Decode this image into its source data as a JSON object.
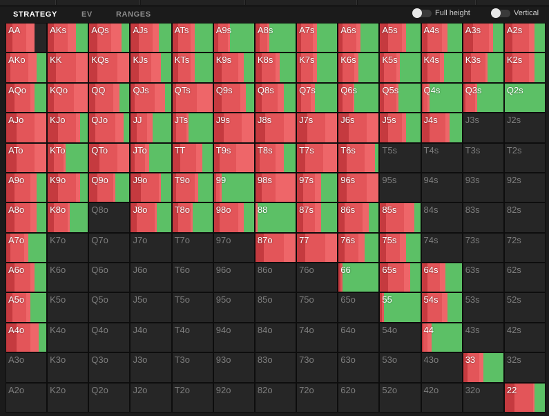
{
  "header": {
    "tabs": [
      {
        "label": "STRATEGY",
        "active": true
      },
      {
        "label": "EV",
        "active": false
      },
      {
        "label": "RANGES",
        "active": false
      }
    ],
    "toggles": [
      {
        "label": "Full height",
        "on": false
      },
      {
        "label": "Vertical",
        "on": false
      }
    ]
  },
  "colors": {
    "raise_dark": "#c53a3f",
    "raise": "#e35559",
    "raise_light": "#ee6669",
    "call": "#5cc066",
    "empty": "#262626",
    "inactive_text": "#7d7d7d"
  },
  "ranks": [
    "A",
    "K",
    "Q",
    "J",
    "T",
    "9",
    "8",
    "7",
    "6",
    "5",
    "4",
    "3",
    "2"
  ],
  "rows": [
    [
      "AA",
      "AKs",
      "AQs",
      "AJs",
      "ATs",
      "A9s",
      "A8s",
      "A7s",
      "A6s",
      "A5s",
      "A4s",
      "A3s",
      "A2s"
    ],
    [
      "AKo",
      "KK",
      "KQs",
      "KJs",
      "KTs",
      "K9s",
      "K8s",
      "K7s",
      "K6s",
      "K5s",
      "K4s",
      "K3s",
      "K2s"
    ],
    [
      "AQo",
      "KQo",
      "QQ",
      "QJs",
      "QTs",
      "Q9s",
      "Q8s",
      "Q7s",
      "Q6s",
      "Q5s",
      "Q4s",
      "Q3s",
      "Q2s"
    ],
    [
      "AJo",
      "KJo",
      "QJo",
      "JJ",
      "JTs",
      "J9s",
      "J8s",
      "J7s",
      "J6s",
      "J5s",
      "J4s",
      "J3s",
      "J2s"
    ],
    [
      "ATo",
      "KTo",
      "QTo",
      "JTo",
      "TT",
      "T9s",
      "T8s",
      "T7s",
      "T6s",
      "T5s",
      "T4s",
      "T3s",
      "T2s"
    ],
    [
      "A9o",
      "K9o",
      "Q9o",
      "J9o",
      "T9o",
      "99",
      "98s",
      "97s",
      "96s",
      "95s",
      "94s",
      "93s",
      "92s"
    ],
    [
      "A8o",
      "K8o",
      "Q8o",
      "J8o",
      "T8o",
      "98o",
      "88",
      "87s",
      "86s",
      "85s",
      "84s",
      "83s",
      "82s"
    ],
    [
      "A7o",
      "K7o",
      "Q7o",
      "J7o",
      "T7o",
      "97o",
      "87o",
      "77",
      "76s",
      "75s",
      "74s",
      "73s",
      "72s"
    ],
    [
      "A6o",
      "K6o",
      "Q6o",
      "J6o",
      "T6o",
      "96o",
      "86o",
      "76o",
      "66",
      "65s",
      "64s",
      "63s",
      "62s"
    ],
    [
      "A5o",
      "K5o",
      "Q5o",
      "J5o",
      "T5o",
      "95o",
      "85o",
      "75o",
      "65o",
      "55",
      "54s",
      "53s",
      "52s"
    ],
    [
      "A4o",
      "K4o",
      "Q4o",
      "J4o",
      "T4o",
      "94o",
      "84o",
      "74o",
      "64o",
      "54o",
      "44",
      "43s",
      "42s"
    ],
    [
      "A3o",
      "K3o",
      "Q3o",
      "J3o",
      "T3o",
      "93o",
      "83o",
      "73o",
      "63o",
      "53o",
      "43o",
      "33",
      "32s"
    ],
    [
      "A2o",
      "K2o",
      "Q2o",
      "J2o",
      "T2o",
      "92o",
      "82o",
      "72o",
      "62o",
      "52o",
      "42o",
      "32o",
      "22"
    ]
  ],
  "strategy": {
    "AA": [
      0.15,
      0.35,
      0.2,
      0.0
    ],
    "AKs": [
      0.15,
      0.35,
      0.2,
      0.3
    ],
    "AQs": [
      0.2,
      0.35,
      0.25,
      0.2
    ],
    "AJs": [
      0.2,
      0.35,
      0.15,
      0.3
    ],
    "ATs": [
      0.15,
      0.3,
      0.1,
      0.45
    ],
    "A9s": [
      0.1,
      0.25,
      0.05,
      0.6
    ],
    "A8s": [
      0.1,
      0.2,
      0.05,
      0.65
    ],
    "A7s": [
      0.1,
      0.3,
      0.1,
      0.5
    ],
    "A6s": [
      0.1,
      0.35,
      0.1,
      0.45
    ],
    "A5s": [
      0.2,
      0.35,
      0.1,
      0.35
    ],
    "A4s": [
      0.15,
      0.35,
      0.15,
      0.35
    ],
    "A3s": [
      0.25,
      0.4,
      0.1,
      0.25
    ],
    "A2s": [
      0.2,
      0.4,
      0.15,
      0.25
    ],
    "AKo": [
      0.1,
      0.45,
      0.2,
      0.25
    ],
    "KK": [
      0.2,
      0.5,
      0.3,
      0.0
    ],
    "KQs": [
      0.2,
      0.5,
      0.3,
      0.0
    ],
    "KJs": [
      0.2,
      0.3,
      0.25,
      0.25
    ],
    "KTs": [
      0.15,
      0.3,
      0.1,
      0.45
    ],
    "K9s": [
      0.2,
      0.4,
      0.15,
      0.25
    ],
    "K8s": [
      0.15,
      0.35,
      0.1,
      0.4
    ],
    "K7s": [
      0.1,
      0.3,
      0.1,
      0.5
    ],
    "K6s": [
      0.1,
      0.3,
      0.1,
      0.5
    ],
    "K5s": [
      0.1,
      0.3,
      0.1,
      0.5
    ],
    "K4s": [
      0.15,
      0.3,
      0.1,
      0.45
    ],
    "K3s": [
      0.2,
      0.35,
      0.05,
      0.4
    ],
    "K2s": [
      0.2,
      0.4,
      0.15,
      0.25
    ],
    "AQo": [
      0.2,
      0.4,
      0.1,
      0.3
    ],
    "KQo": [
      0.15,
      0.5,
      0.35,
      0.0
    ],
    "QQ": [
      0.15,
      0.45,
      0.15,
      0.25
    ],
    "QJs": [
      0.1,
      0.5,
      0.25,
      0.15
    ],
    "QTs": [
      0.1,
      0.5,
      0.4,
      0.0
    ],
    "Q9s": [
      0.2,
      0.45,
      0.15,
      0.2
    ],
    "Q8s": [
      0.15,
      0.4,
      0.15,
      0.3
    ],
    "Q7s": [
      0.1,
      0.25,
      0.1,
      0.55
    ],
    "Q6s": [
      0.1,
      0.25,
      0.05,
      0.6
    ],
    "Q5s": [
      0.1,
      0.3,
      0.05,
      0.55
    ],
    "Q4s": [
      0.05,
      0.1,
      0.05,
      0.8
    ],
    "Q3s": [
      0.05,
      0.25,
      0.05,
      0.65
    ],
    "Q2s": [
      0.0,
      0.0,
      0.0,
      1.0
    ],
    "AJo": [
      0.25,
      0.45,
      0.3,
      0.0
    ],
    "KJo": [
      0.25,
      0.45,
      0.1,
      0.2
    ],
    "QJo": [
      0.15,
      0.5,
      0.2,
      0.15
    ],
    "JJ": [
      0.15,
      0.25,
      0.15,
      0.45
    ],
    "JTs": [
      0.1,
      0.25,
      0.05,
      0.6
    ],
    "J9s": [
      0.25,
      0.45,
      0.3,
      0.0
    ],
    "J8s": [
      0.25,
      0.45,
      0.3,
      0.0
    ],
    "J7s": [
      0.25,
      0.45,
      0.3,
      0.0
    ],
    "J6s": [
      0.25,
      0.45,
      0.3,
      0.0
    ],
    "J5s": [
      0.2,
      0.35,
      0.1,
      0.35
    ],
    "J4s": [
      0.2,
      0.4,
      0.1,
      0.3
    ],
    "J3s": [
      0,
      0,
      0,
      0
    ],
    "J2s": [
      0,
      0,
      0,
      0
    ],
    "ATo": [
      0.25,
      0.45,
      0.3,
      0.0
    ],
    "KTo": [
      0.15,
      0.25,
      0.05,
      0.55
    ],
    "QTo": [
      0.25,
      0.45,
      0.3,
      0.0
    ],
    "JTo": [
      0.1,
      0.25,
      0.1,
      0.55
    ],
    "TT": [
      0.2,
      0.4,
      0.15,
      0.25
    ],
    "T9s": [
      0.15,
      0.4,
      0.45,
      0.0
    ],
    "T8s": [
      0.1,
      0.4,
      0.2,
      0.3
    ],
    "T7s": [
      0.2,
      0.45,
      0.35,
      0.0
    ],
    "T6s": [
      0.2,
      0.45,
      0.25,
      0.1
    ],
    "T5s": [
      0,
      0,
      0,
      0
    ],
    "T4s": [
      0,
      0,
      0,
      0
    ],
    "T3s": [
      0,
      0,
      0,
      0
    ],
    "T2s": [
      0,
      0,
      0,
      0
    ],
    "A9o": [
      0.2,
      0.4,
      0.15,
      0.25
    ],
    "K9o": [
      0.25,
      0.45,
      0.1,
      0.2
    ],
    "Q9o": [
      0.2,
      0.4,
      0.05,
      0.35
    ],
    "J9o": [
      0.25,
      0.45,
      0.05,
      0.25
    ],
    "T9o": [
      0.1,
      0.45,
      0.1,
      0.35
    ],
    "99": [
      0.05,
      0.1,
      0.05,
      0.8
    ],
    "98s": [
      0.15,
      0.35,
      0.5,
      0.0
    ],
    "97s": [
      0.15,
      0.3,
      0.15,
      0.4
    ],
    "96s": [
      0.2,
      0.5,
      0.3,
      0.0
    ],
    "95s": [
      0,
      0,
      0,
      0
    ],
    "94s": [
      0,
      0,
      0,
      0
    ],
    "93s": [
      0,
      0,
      0,
      0
    ],
    "92s": [
      0,
      0,
      0,
      0
    ],
    "A8o": [
      0.2,
      0.4,
      0.15,
      0.25
    ],
    "K8o": [
      0.15,
      0.35,
      0.05,
      0.45
    ],
    "Q8o": [
      0,
      0,
      0,
      0
    ],
    "J8o": [
      0.15,
      0.45,
      0.05,
      0.35
    ],
    "T8o": [
      0.15,
      0.3,
      0.05,
      0.5
    ],
    "98o": [
      0.15,
      0.45,
      0.15,
      0.25
    ],
    "88": [
      0.0,
      0.0,
      0.05,
      0.95
    ],
    "87s": [
      0.15,
      0.3,
      0.15,
      0.4
    ],
    "86s": [
      0.15,
      0.45,
      0.15,
      0.25
    ],
    "85s": [
      0.15,
      0.45,
      0.25,
      0.15
    ],
    "84s": [
      0,
      0,
      0,
      0
    ],
    "83s": [
      0,
      0,
      0,
      0
    ],
    "82s": [
      0,
      0,
      0,
      0
    ],
    "A7o": [
      0.1,
      0.35,
      0.1,
      0.45
    ],
    "K7o": [
      0,
      0,
      0,
      0
    ],
    "Q7o": [
      0,
      0,
      0,
      0
    ],
    "J7o": [
      0,
      0,
      0,
      0
    ],
    "T7o": [
      0,
      0,
      0,
      0
    ],
    "97o": [
      0,
      0,
      0,
      0
    ],
    "87o": [
      0.2,
      0.5,
      0.3,
      0.0
    ],
    "77": [
      0.2,
      0.5,
      0.3,
      0.0
    ],
    "76s": [
      0.15,
      0.35,
      0.15,
      0.35
    ],
    "75s": [
      0.15,
      0.35,
      0.15,
      0.35
    ],
    "74s": [
      0,
      0,
      0,
      0
    ],
    "73s": [
      0,
      0,
      0,
      0
    ],
    "72s": [
      0,
      0,
      0,
      0
    ],
    "A6o": [
      0.2,
      0.4,
      0.1,
      0.3
    ],
    "K6o": [
      0,
      0,
      0,
      0
    ],
    "Q6o": [
      0,
      0,
      0,
      0
    ],
    "J6o": [
      0,
      0,
      0,
      0
    ],
    "T6o": [
      0,
      0,
      0,
      0
    ],
    "96o": [
      0,
      0,
      0,
      0
    ],
    "86o": [
      0,
      0,
      0,
      0
    ],
    "76o": [
      0,
      0,
      0,
      0
    ],
    "66": [
      0.05,
      0.05,
      0.0,
      0.9
    ],
    "65s": [
      0.2,
      0.4,
      0.15,
      0.25
    ],
    "64s": [
      0.15,
      0.3,
      0.15,
      0.4
    ],
    "63s": [
      0,
      0,
      0,
      0
    ],
    "62s": [
      0,
      0,
      0,
      0
    ],
    "A5o": [
      0.15,
      0.35,
      0.1,
      0.4
    ],
    "K5o": [
      0,
      0,
      0,
      0
    ],
    "Q5o": [
      0,
      0,
      0,
      0
    ],
    "J5o": [
      0,
      0,
      0,
      0
    ],
    "T5o": [
      0,
      0,
      0,
      0
    ],
    "95o": [
      0,
      0,
      0,
      0
    ],
    "85o": [
      0,
      0,
      0,
      0
    ],
    "75o": [
      0,
      0,
      0,
      0
    ],
    "65o": [
      0,
      0,
      0,
      0
    ],
    "55": [
      0.05,
      0.05,
      0.0,
      0.9
    ],
    "54s": [
      0.15,
      0.35,
      0.15,
      0.35
    ],
    "53s": [
      0,
      0,
      0,
      0
    ],
    "52s": [
      0,
      0,
      0,
      0
    ],
    "A4o": [
      0.25,
      0.35,
      0.2,
      0.2
    ],
    "K4o": [
      0,
      0,
      0,
      0
    ],
    "Q4o": [
      0,
      0,
      0,
      0
    ],
    "J4o": [
      0,
      0,
      0,
      0
    ],
    "T4o": [
      0,
      0,
      0,
      0
    ],
    "94o": [
      0,
      0,
      0,
      0
    ],
    "84o": [
      0,
      0,
      0,
      0
    ],
    "74o": [
      0,
      0,
      0,
      0
    ],
    "64o": [
      0,
      0,
      0,
      0
    ],
    "54o": [
      0,
      0,
      0,
      0
    ],
    "44": [
      0.05,
      0.1,
      0.1,
      0.75
    ],
    "43s": [
      0,
      0,
      0,
      0
    ],
    "42s": [
      0,
      0,
      0,
      0
    ],
    "A3o": [
      0,
      0,
      0,
      0
    ],
    "K3o": [
      0,
      0,
      0,
      0
    ],
    "Q3o": [
      0,
      0,
      0,
      0
    ],
    "J3o": [
      0,
      0,
      0,
      0
    ],
    "T3o": [
      0,
      0,
      0,
      0
    ],
    "93o": [
      0,
      0,
      0,
      0
    ],
    "83o": [
      0,
      0,
      0,
      0
    ],
    "73o": [
      0,
      0,
      0,
      0
    ],
    "63o": [
      0,
      0,
      0,
      0
    ],
    "53o": [
      0,
      0,
      0,
      0
    ],
    "43o": [
      0,
      0,
      0,
      0
    ],
    "33": [
      0.1,
      0.3,
      0.1,
      0.5
    ],
    "32s": [
      0,
      0,
      0,
      0
    ],
    "A2o": [
      0,
      0,
      0,
      0
    ],
    "K2o": [
      0,
      0,
      0,
      0
    ],
    "Q2o": [
      0,
      0,
      0,
      0
    ],
    "J2o": [
      0,
      0,
      0,
      0
    ],
    "T2o": [
      0,
      0,
      0,
      0
    ],
    "92o": [
      0,
      0,
      0,
      0
    ],
    "82o": [
      0,
      0,
      0,
      0
    ],
    "72o": [
      0,
      0,
      0,
      0
    ],
    "62o": [
      0,
      0,
      0,
      0
    ],
    "52o": [
      0,
      0,
      0,
      0
    ],
    "42o": [
      0,
      0,
      0,
      0
    ],
    "32o": [
      0,
      0,
      0,
      0
    ],
    "22": [
      0.25,
      0.45,
      0.05,
      0.25
    ]
  }
}
